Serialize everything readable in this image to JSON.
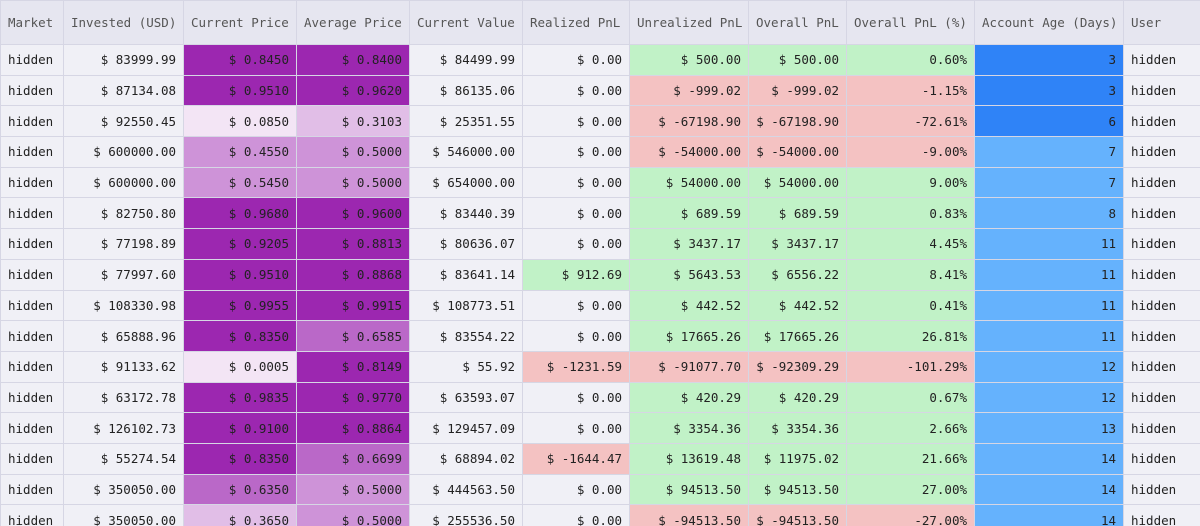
{
  "table": {
    "columns": [
      "Market",
      "Invested (USD)",
      "Current Price",
      "Average Price",
      "Current Value",
      "Realized PnL",
      "Unrealized PnL",
      "Overall PnL",
      "Overall PnL (%)",
      "Account Age (Days)",
      "User"
    ],
    "rows": [
      [
        "hidden",
        "$ 83999.99",
        "$ 0.8450",
        "$ 0.8400",
        "$ 84499.99",
        "$ 0.00",
        "$ 500.00",
        "$ 500.00",
        "0.60%",
        "3",
        "hidden"
      ],
      [
        "hidden",
        "$ 87134.08",
        "$ 0.9510",
        "$ 0.9620",
        "$ 86135.06",
        "$ 0.00",
        "$ -999.02",
        "$ -999.02",
        "-1.15%",
        "3",
        "hidden"
      ],
      [
        "hidden",
        "$ 92550.45",
        "$ 0.0850",
        "$ 0.3103",
        "$ 25351.55",
        "$ 0.00",
        "$ -67198.90",
        "$ -67198.90",
        "-72.61%",
        "6",
        "hidden"
      ],
      [
        "hidden",
        "$ 600000.00",
        "$ 0.4550",
        "$ 0.5000",
        "$ 546000.00",
        "$ 0.00",
        "$ -54000.00",
        "$ -54000.00",
        "-9.00%",
        "7",
        "hidden"
      ],
      [
        "hidden",
        "$ 600000.00",
        "$ 0.5450",
        "$ 0.5000",
        "$ 654000.00",
        "$ 0.00",
        "$ 54000.00",
        "$ 54000.00",
        "9.00%",
        "7",
        "hidden"
      ],
      [
        "hidden",
        "$ 82750.80",
        "$ 0.9680",
        "$ 0.9600",
        "$ 83440.39",
        "$ 0.00",
        "$ 689.59",
        "$ 689.59",
        "0.83%",
        "8",
        "hidden"
      ],
      [
        "hidden",
        "$ 77198.89",
        "$ 0.9205",
        "$ 0.8813",
        "$ 80636.07",
        "$ 0.00",
        "$ 3437.17",
        "$ 3437.17",
        "4.45%",
        "11",
        "hidden"
      ],
      [
        "hidden",
        "$ 77997.60",
        "$ 0.9510",
        "$ 0.8868",
        "$ 83641.14",
        "$ 912.69",
        "$ 5643.53",
        "$ 6556.22",
        "8.41%",
        "11",
        "hidden"
      ],
      [
        "hidden",
        "$ 108330.98",
        "$ 0.9955",
        "$ 0.9915",
        "$ 108773.51",
        "$ 0.00",
        "$ 442.52",
        "$ 442.52",
        "0.41%",
        "11",
        "hidden"
      ],
      [
        "hidden",
        "$ 65888.96",
        "$ 0.8350",
        "$ 0.6585",
        "$ 83554.22",
        "$ 0.00",
        "$ 17665.26",
        "$ 17665.26",
        "26.81%",
        "11",
        "hidden"
      ],
      [
        "hidden",
        "$ 91133.62",
        "$ 0.0005",
        "$ 0.8149",
        "$ 55.92",
        "$ -1231.59",
        "$ -91077.70",
        "$ -92309.29",
        "-101.29%",
        "12",
        "hidden"
      ],
      [
        "hidden",
        "$ 63172.78",
        "$ 0.9835",
        "$ 0.9770",
        "$ 63593.07",
        "$ 0.00",
        "$ 420.29",
        "$ 420.29",
        "0.67%",
        "12",
        "hidden"
      ],
      [
        "hidden",
        "$ 126102.73",
        "$ 0.9100",
        "$ 0.8864",
        "$ 129457.09",
        "$ 0.00",
        "$ 3354.36",
        "$ 3354.36",
        "2.66%",
        "13",
        "hidden"
      ],
      [
        "hidden",
        "$ 55274.54",
        "$ 0.8350",
        "$ 0.6699",
        "$ 68894.02",
        "$ -1644.47",
        "$ 13619.48",
        "$ 11975.02",
        "21.66%",
        "14",
        "hidden"
      ],
      [
        "hidden",
        "$ 350050.00",
        "$ 0.6350",
        "$ 0.5000",
        "$ 444563.50",
        "$ 0.00",
        "$ 94513.50",
        "$ 94513.50",
        "27.00%",
        "14",
        "hidden"
      ],
      [
        "hidden",
        "$ 350050.00",
        "$ 0.3650",
        "$ 0.5000",
        "$ 255536.50",
        "$ 0.00",
        "$ -94513.50",
        "$ -94513.50",
        "-27.00%",
        "14",
        "hidden"
      ]
    ]
  }
}
